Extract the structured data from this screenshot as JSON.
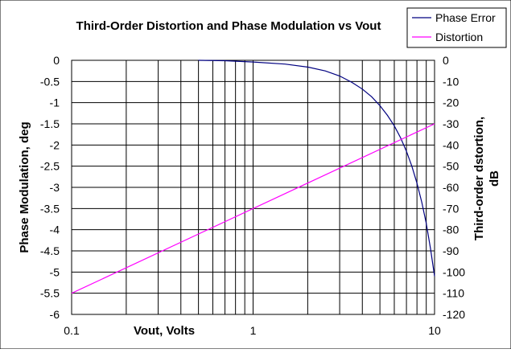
{
  "chart_data": {
    "type": "line",
    "title": "Third-Order Distortion and Phase Modulation vs Vout",
    "xlabel": "Vout, Volts",
    "ylabel": "Phase Modulation, deg",
    "y2label_line1": "Third-order dstortion,",
    "y2label_line2": "dB",
    "x_scale": "log",
    "xlim": [
      0.1,
      10
    ],
    "ylim": [
      -6,
      0
    ],
    "y2lim": [
      -120,
      0
    ],
    "grid": true,
    "legend_position": "top-right",
    "x_ticks": [
      "0.1",
      "1",
      "10"
    ],
    "y_ticks": [
      "0",
      "-0.5",
      "-1",
      "-1.5",
      "-2",
      "-2.5",
      "-3",
      "-3.5",
      "-4",
      "-4.5",
      "-5",
      "-5.5",
      "-6"
    ],
    "y2_ticks": [
      "0",
      "-10",
      "-20",
      "-30",
      "-40",
      "-50",
      "-60",
      "-70",
      "-80",
      "-90",
      "-100",
      "-110",
      "-120"
    ],
    "series": [
      {
        "name": "Phase Error",
        "color": "#000080",
        "axis": "left",
        "x": [
          0.5,
          0.7,
          1,
          1.5,
          2,
          2.5,
          3,
          3.5,
          4,
          4.5,
          5,
          5.5,
          6,
          6.5,
          7,
          7.5,
          8,
          8.5,
          9,
          9.5,
          10
        ],
        "y": [
          0,
          -0.01,
          -0.04,
          -0.09,
          -0.16,
          -0.25,
          -0.37,
          -0.52,
          -0.68,
          -0.86,
          -1.07,
          -1.3,
          -1.55,
          -1.83,
          -2.15,
          -2.5,
          -2.9,
          -3.35,
          -3.85,
          -4.45,
          -5.1
        ]
      },
      {
        "name": "Distortion",
        "color": "#ff00ff",
        "axis": "right",
        "x": [
          0.1,
          10
        ],
        "y": [
          -110,
          -30
        ]
      }
    ]
  }
}
